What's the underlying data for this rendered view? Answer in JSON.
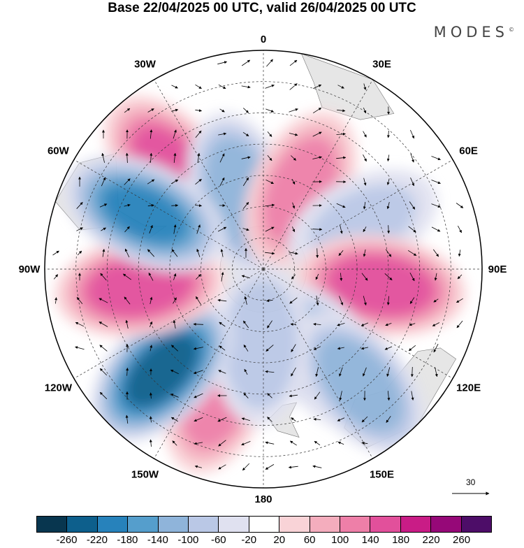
{
  "title": "Base 22/04/2025 00 UTC, valid 26/04/2025 00 UTC",
  "brand": "MODES",
  "brand_mark": "©",
  "longitude_labels": [
    {
      "text": "0",
      "lon": 0
    },
    {
      "text": "30E",
      "lon": 30
    },
    {
      "text": "60E",
      "lon": 60
    },
    {
      "text": "90E",
      "lon": 90
    },
    {
      "text": "120E",
      "lon": 120
    },
    {
      "text": "150E",
      "lon": 150
    },
    {
      "text": "180",
      "lon": 180
    },
    {
      "text": "150W",
      "lon": 210
    },
    {
      "text": "120W",
      "lon": 240
    },
    {
      "text": "90W",
      "lon": 270
    },
    {
      "text": "60W",
      "lon": 300
    },
    {
      "text": "30W",
      "lon": 330
    }
  ],
  "wind_scale_label": "30",
  "colorbar": {
    "colors": [
      "#08364f",
      "#0d5f8c",
      "#2782bb",
      "#559ecc",
      "#8fb4da",
      "#bac8e6",
      "#e0e1f0",
      "#ffffff",
      "#f9d3d7",
      "#f4adbd",
      "#ee7fa8",
      "#e2509b",
      "#c91c86",
      "#960878",
      "#4d0d68"
    ],
    "ticks": [
      "-260",
      "-220",
      "-180",
      "-140",
      "-100",
      "-60",
      "-20",
      "20",
      "60",
      "100",
      "140",
      "180",
      "220",
      "260"
    ]
  },
  "anomaly_centers": [
    {
      "lon": 318,
      "lat": -46,
      "value": 150
    },
    {
      "lon": 343,
      "lat": -65,
      "value": -130
    },
    {
      "lon": 25,
      "lat": -62,
      "value": 120
    },
    {
      "lon": 65,
      "lat": -55,
      "value": -60
    },
    {
      "lon": 98,
      "lat": -52,
      "value": 170
    },
    {
      "lon": 145,
      "lat": -55,
      "value": -110
    },
    {
      "lon": 140,
      "lat": -42,
      "value": -120
    },
    {
      "lon": 200,
      "lat": -48,
      "value": 130
    },
    {
      "lon": 182,
      "lat": -66,
      "value": -90
    },
    {
      "lon": 225,
      "lat": -44,
      "value": -230
    },
    {
      "lon": 262,
      "lat": -50,
      "value": 170
    },
    {
      "lon": 295,
      "lat": -48,
      "value": -180
    }
  ]
}
